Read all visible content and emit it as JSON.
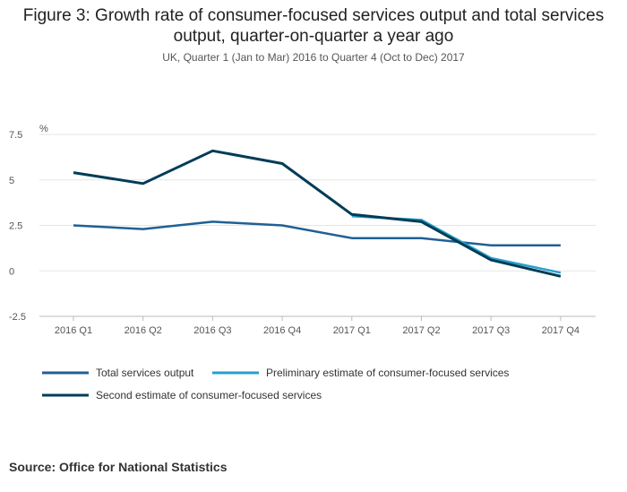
{
  "chart_data": {
    "type": "line",
    "title": "Figure 3: Growth rate of consumer-focused services output and total services output, quarter-on-quarter a year ago",
    "subtitle": "UK, Quarter 1 (Jan to Mar) 2016 to Quarter 4 (Oct to Dec) 2017",
    "ylabel": "%",
    "xlabel": "",
    "ylim": [
      -2.5,
      7.5
    ],
    "yticks": [
      7.5,
      5,
      2.5,
      0,
      -2.5
    ],
    "ytick_labels": [
      "7.5",
      "5",
      "2.5",
      "0",
      "-2.5"
    ],
    "categories": [
      "2016 Q1",
      "2016 Q2",
      "2016 Q3",
      "2016 Q4",
      "2017 Q1",
      "2017 Q2",
      "2017 Q3",
      "2017 Q4"
    ],
    "series": [
      {
        "name": "Total services output",
        "color": "#206095",
        "values": [
          2.5,
          2.3,
          2.7,
          2.5,
          1.8,
          1.8,
          1.4,
          1.4
        ]
      },
      {
        "name": "Preliminary estimate of consumer-focused services",
        "color": "#27a0cc",
        "values": [
          null,
          null,
          null,
          null,
          3.0,
          2.8,
          0.7,
          -0.1
        ]
      },
      {
        "name": "Second estimate of consumer-focused services",
        "color": "#003c57",
        "values": [
          5.4,
          4.8,
          6.6,
          5.9,
          3.1,
          2.7,
          0.6,
          -0.3
        ]
      }
    ],
    "grid": true,
    "legend_position": "bottom-left"
  },
  "source": "Source: Office for National Statistics"
}
